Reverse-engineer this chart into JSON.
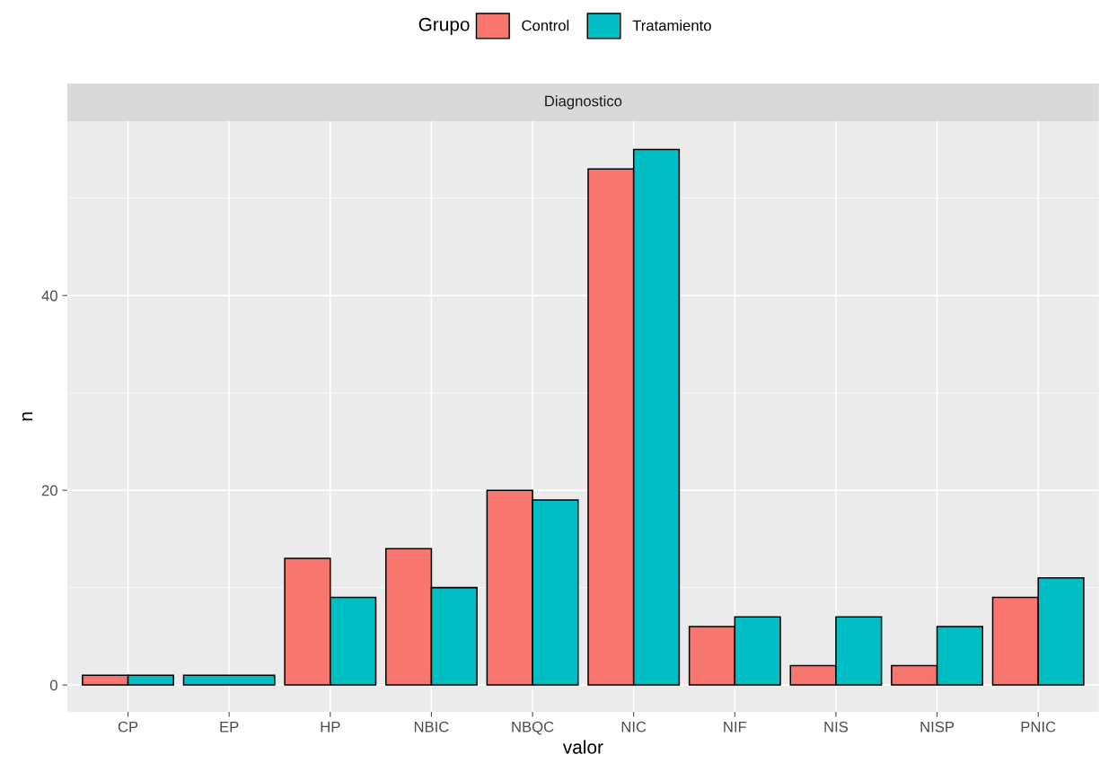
{
  "chart_data": {
    "type": "bar",
    "title": "Diagnostico",
    "xlabel": "valor",
    "ylabel": "n",
    "legend_title": "Grupo",
    "legend": "top",
    "categories": [
      "CP",
      "EP",
      "HP",
      "NBIC",
      "NBQC",
      "NIC",
      "NIF",
      "NIS",
      "NISP",
      "PNIC"
    ],
    "series": [
      {
        "name": "Control",
        "color": "#f8766d",
        "values": [
          1,
          null,
          13,
          14,
          20,
          53,
          6,
          2,
          2,
          9
        ]
      },
      {
        "name": "Tratamiento",
        "color": "#00bfc4",
        "values": [
          1,
          1,
          9,
          10,
          19,
          55,
          7,
          7,
          6,
          11
        ]
      }
    ],
    "ylim": [
      -2.75,
      57.9
    ],
    "yticks": [
      0,
      20,
      40
    ],
    "grid": true
  }
}
